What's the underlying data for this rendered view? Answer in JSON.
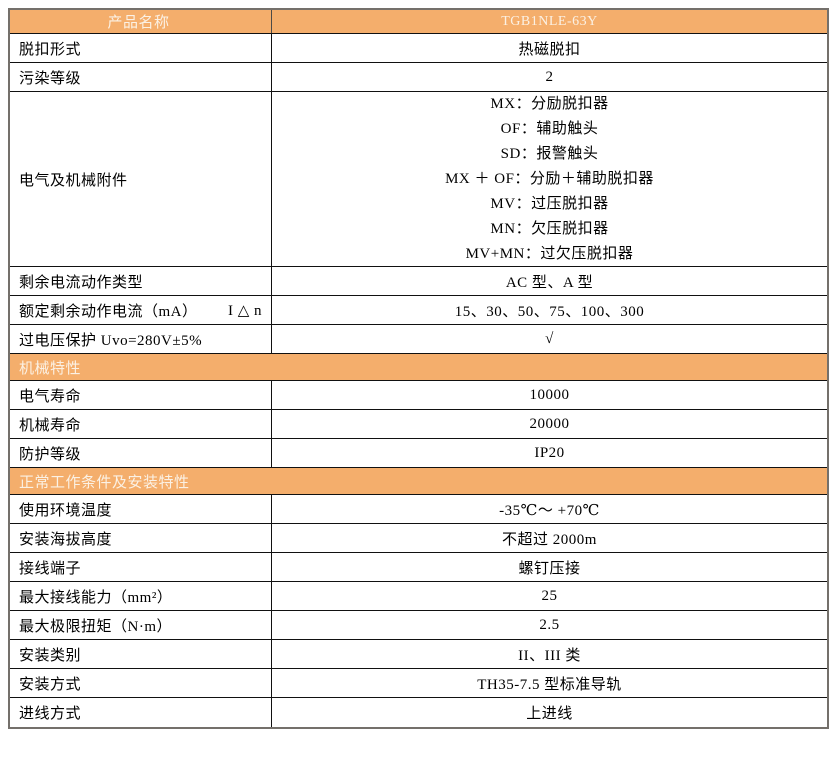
{
  "colors": {
    "accent_orange": "#F4AE6C",
    "header_text": "#FBF1E4",
    "grid_line": "#111111",
    "outer_border": "#74706b"
  },
  "table": {
    "rows": [
      {
        "type": "header",
        "label": "产品名称",
        "value": "TGB1NLE-63Y"
      },
      {
        "type": "kv",
        "label": "脱扣形式",
        "value": "热磁脱扣"
      },
      {
        "type": "kv",
        "label": "污染等级",
        "value": "2"
      },
      {
        "type": "kv-multi",
        "label": "电气及机械附件",
        "values": [
          "MX：分励脱扣器",
          "OF：辅助触头",
          "SD：报警触头",
          "MX ＋ OF：分励＋辅助脱扣器",
          "MV：过压脱扣器",
          "MN：欠压脱扣器",
          "MV+MN：过欠压脱扣器"
        ]
      },
      {
        "type": "kv",
        "label": "剩余电流动作类型",
        "value": "AC 型、A 型"
      },
      {
        "type": "kv",
        "label": "额定剩余动作电流（mA）",
        "label_right": "I △ n",
        "value": "15、30、50、75、100、300"
      },
      {
        "type": "kv",
        "label": "过电压保护 Uvo=280V±5%",
        "value": "√"
      },
      {
        "type": "section",
        "label": "机械特性"
      },
      {
        "type": "kv",
        "label": "电气寿命",
        "value": "10000"
      },
      {
        "type": "kv",
        "label": "机械寿命",
        "value": "20000"
      },
      {
        "type": "kv",
        "label": "防护等级",
        "value": "IP20"
      },
      {
        "type": "section",
        "label": "正常工作条件及安装特性"
      },
      {
        "type": "kv",
        "label": "使用环境温度",
        "value": "-35℃～ +70℃"
      },
      {
        "type": "kv",
        "label": "安装海拔高度",
        "value": "不超过 2000m"
      },
      {
        "type": "kv",
        "label": "接线端子",
        "value": "螺钉压接"
      },
      {
        "type": "kv",
        "label": "最大接线能力（mm²）",
        "value": "25"
      },
      {
        "type": "kv",
        "label": "最大极限扭矩（N·m）",
        "value": "2.5"
      },
      {
        "type": "kv",
        "label": "安装类别",
        "value": "II、III 类"
      },
      {
        "type": "kv",
        "label": "安装方式",
        "value": "TH35-7.5 型标准导轨"
      },
      {
        "type": "kv",
        "label": "进线方式",
        "value": "上进线"
      }
    ]
  }
}
